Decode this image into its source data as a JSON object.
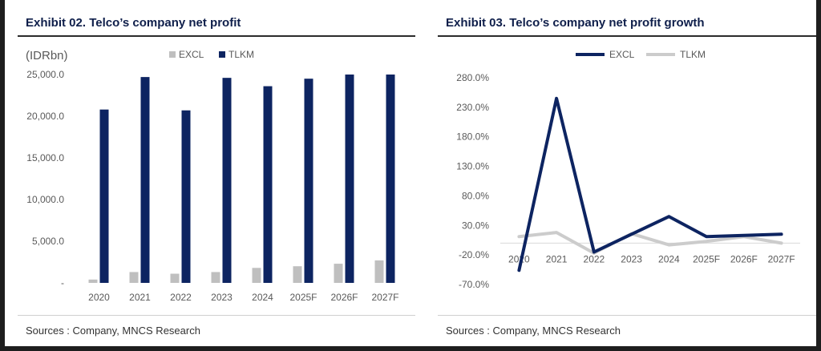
{
  "exhibit_02": {
    "title": "Exhibit 02. Telco’s company net profit",
    "source": "Sources : Company, MNCS Research"
  },
  "exhibit_03": {
    "title": "Exhibit 03. Telco’s company net profit growth",
    "source": "Sources : Company, MNCS Research"
  },
  "colors": {
    "excl": "#bfbfbf",
    "tlkm": "#0d2461",
    "grid": "#e6e6e6",
    "axis_text": "#595959"
  },
  "chart_data": [
    {
      "type": "bar",
      "title": "Exhibit 02. Telco’s company net profit",
      "ylabel": "(IDRbn)",
      "categories": [
        "2020",
        "2021",
        "2022",
        "2023",
        "2024",
        "2025F",
        "2026F",
        "2027F"
      ],
      "yticks": [
        "-",
        "5,000.0",
        "10,000.0",
        "15,000.0",
        "20,000.0",
        "25,000.0"
      ],
      "ylim": [
        0,
        25000
      ],
      "legend_position": "top",
      "series": [
        {
          "name": "EXCL",
          "color": "#bfbfbf",
          "values": [
            400,
            1300,
            1100,
            1300,
            1800,
            2000,
            2300,
            2700
          ]
        },
        {
          "name": "TLKM",
          "color": "#0d2461",
          "values": [
            20800,
            24700,
            20700,
            24600,
            23600,
            24500,
            25000,
            25000
          ]
        }
      ]
    },
    {
      "type": "line",
      "title": "Exhibit 03. Telco’s company net profit growth",
      "categories": [
        "2020",
        "2021",
        "2022",
        "2023",
        "2024",
        "2025F",
        "2026F",
        "2027F"
      ],
      "yticks": [
        "-70.0%",
        "-20.0%",
        "30.0%",
        "80.0%",
        "130.0%",
        "180.0%",
        "230.0%",
        "280.0%"
      ],
      "ylim": [
        -70,
        280
      ],
      "y_unit": "%",
      "legend_position": "top",
      "series": [
        {
          "name": "EXCL",
          "color": "#0d2461",
          "values": [
            -46,
            245,
            -15,
            15,
            45,
            11,
            13,
            15
          ]
        },
        {
          "name": "TLKM",
          "color": "#cccccc",
          "values": [
            11,
            18,
            -17,
            16,
            -3,
            3,
            11,
            0
          ]
        }
      ]
    }
  ]
}
